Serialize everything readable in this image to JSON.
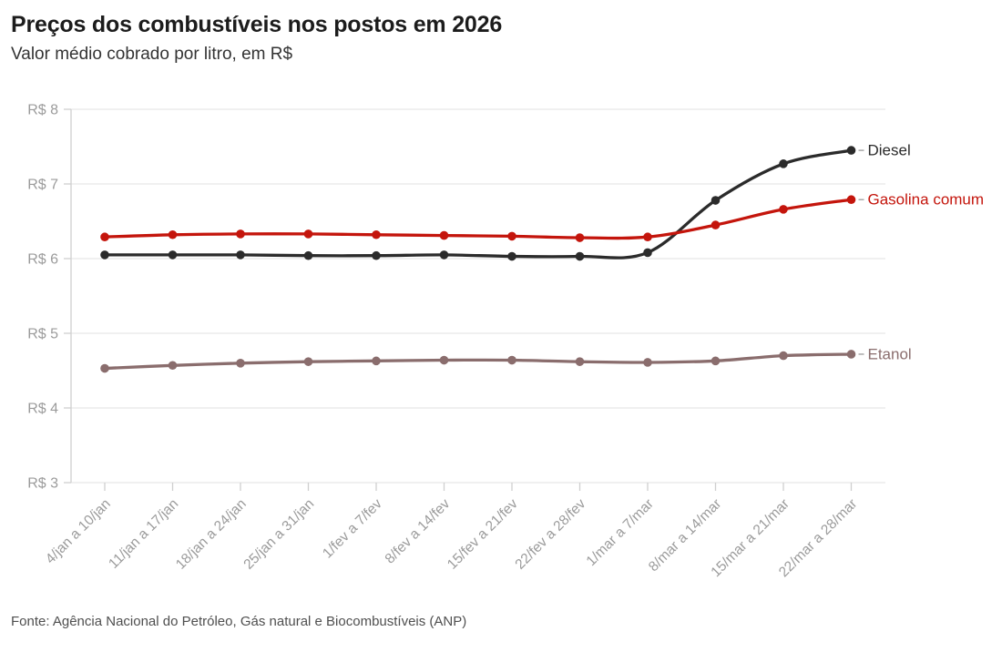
{
  "header": {
    "title": "Preços dos combustíveis nos postos em 2026",
    "subtitle": "Valor médio cobrado por litro, em R$"
  },
  "footer": {
    "source": "Fonte: Agência Nacional do Petróleo, Gás natural e Biocombustíveis (ANP)"
  },
  "chart_data": {
    "type": "line",
    "title": "Preços dos combustíveis nos postos em 2026",
    "subtitle": "Valor médio cobrado por litro, em R$",
    "categories": [
      "4/jan a 10/jan",
      "11/jan a 17/jan",
      "18/jan a 24/jan",
      "25/jan a 31/jan",
      "1/fev a 7/fev",
      "8/fev a 14/fev",
      "15/fev a 21/fev",
      "22/fev a 28/fev",
      "1/mar a 7/mar",
      "8/mar a 14/mar",
      "15/mar a 21/mar",
      "22/mar a 28/mar"
    ],
    "series": [
      {
        "name": "Diesel",
        "color": "#2b2b2b",
        "values": [
          6.05,
          6.05,
          6.05,
          6.04,
          6.04,
          6.05,
          6.03,
          6.03,
          6.08,
          6.78,
          7.27,
          7.45
        ]
      },
      {
        "name": "Gasolina comum",
        "color": "#c4150c",
        "values": [
          6.29,
          6.32,
          6.33,
          6.33,
          6.32,
          6.31,
          6.3,
          6.28,
          6.29,
          6.45,
          6.66,
          6.79
        ]
      },
      {
        "name": "Etanol",
        "color": "#8a6d6d",
        "values": [
          4.53,
          4.57,
          4.6,
          4.62,
          4.63,
          4.64,
          4.64,
          4.62,
          4.61,
          4.63,
          4.7,
          4.72
        ]
      }
    ],
    "ylim": [
      3,
      8
    ],
    "y_tick_labels": [
      "R$ 3",
      "R$ 4",
      "R$ 5",
      "R$ 6",
      "R$ 7",
      "R$ 8"
    ],
    "y_tick_values": [
      3,
      4,
      5,
      6,
      7,
      8
    ],
    "grid": "horizontal",
    "legend_position": "right-end-labels",
    "xlabel": "",
    "ylabel": ""
  }
}
